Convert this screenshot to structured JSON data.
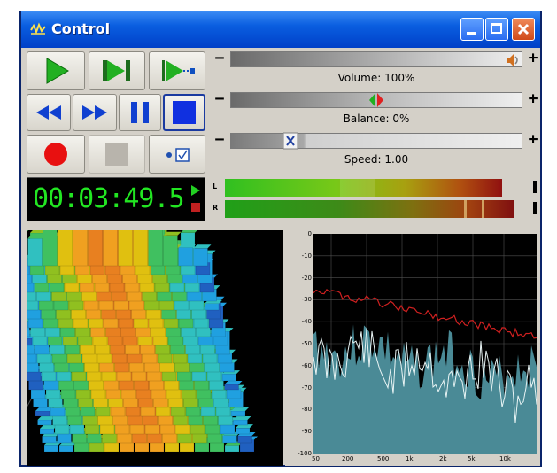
{
  "window": {
    "title": "Control",
    "accent": "#0a5ee0"
  },
  "transport": {
    "row1": [
      {
        "name": "play-button",
        "icon": "play-icon"
      },
      {
        "name": "play-selection-button",
        "icon": "play-selection-icon"
      },
      {
        "name": "play-to-end-button",
        "icon": "play-to-cursor-icon"
      }
    ],
    "row2": [
      {
        "name": "rewind-button",
        "icon": "rewind-icon"
      },
      {
        "name": "fast-forward-button",
        "icon": "fast-forward-icon"
      },
      {
        "name": "pause-button",
        "icon": "pause-icon"
      },
      {
        "name": "stop-button",
        "icon": "stop-icon"
      }
    ],
    "row3": [
      {
        "name": "record-button",
        "icon": "record-icon"
      },
      {
        "name": "record-stop-button",
        "icon": "square-icon"
      },
      {
        "name": "record-options-button",
        "icon": "options-icon"
      }
    ]
  },
  "sliders": {
    "volume": {
      "label": "Volume: 100%",
      "minus": "−",
      "plus": "+",
      "value_percent": 100
    },
    "balance": {
      "label": "Balance: 0%",
      "minus": "−",
      "plus": "+",
      "value_percent": 0
    },
    "speed": {
      "label": "Speed: 1.00",
      "minus": "−",
      "plus": "+",
      "value": 1.0
    }
  },
  "time": {
    "display": "00:03:49.5",
    "color": "#22e622"
  },
  "vu": {
    "left_label": "L",
    "right_label": "R",
    "left_level": 0.92,
    "right_level": 0.96
  },
  "analyzer": {
    "y_ticks": [
      "0",
      "-10",
      "-20",
      "-30",
      "-40",
      "-50",
      "-60",
      "-70",
      "-80",
      "-90",
      "-100"
    ],
    "x_ticks": [
      "50",
      "200",
      "500",
      "1k",
      "2k",
      "5k",
      "10k"
    ],
    "fill_color": "#4a8a96",
    "peak_color": "#d02020"
  }
}
